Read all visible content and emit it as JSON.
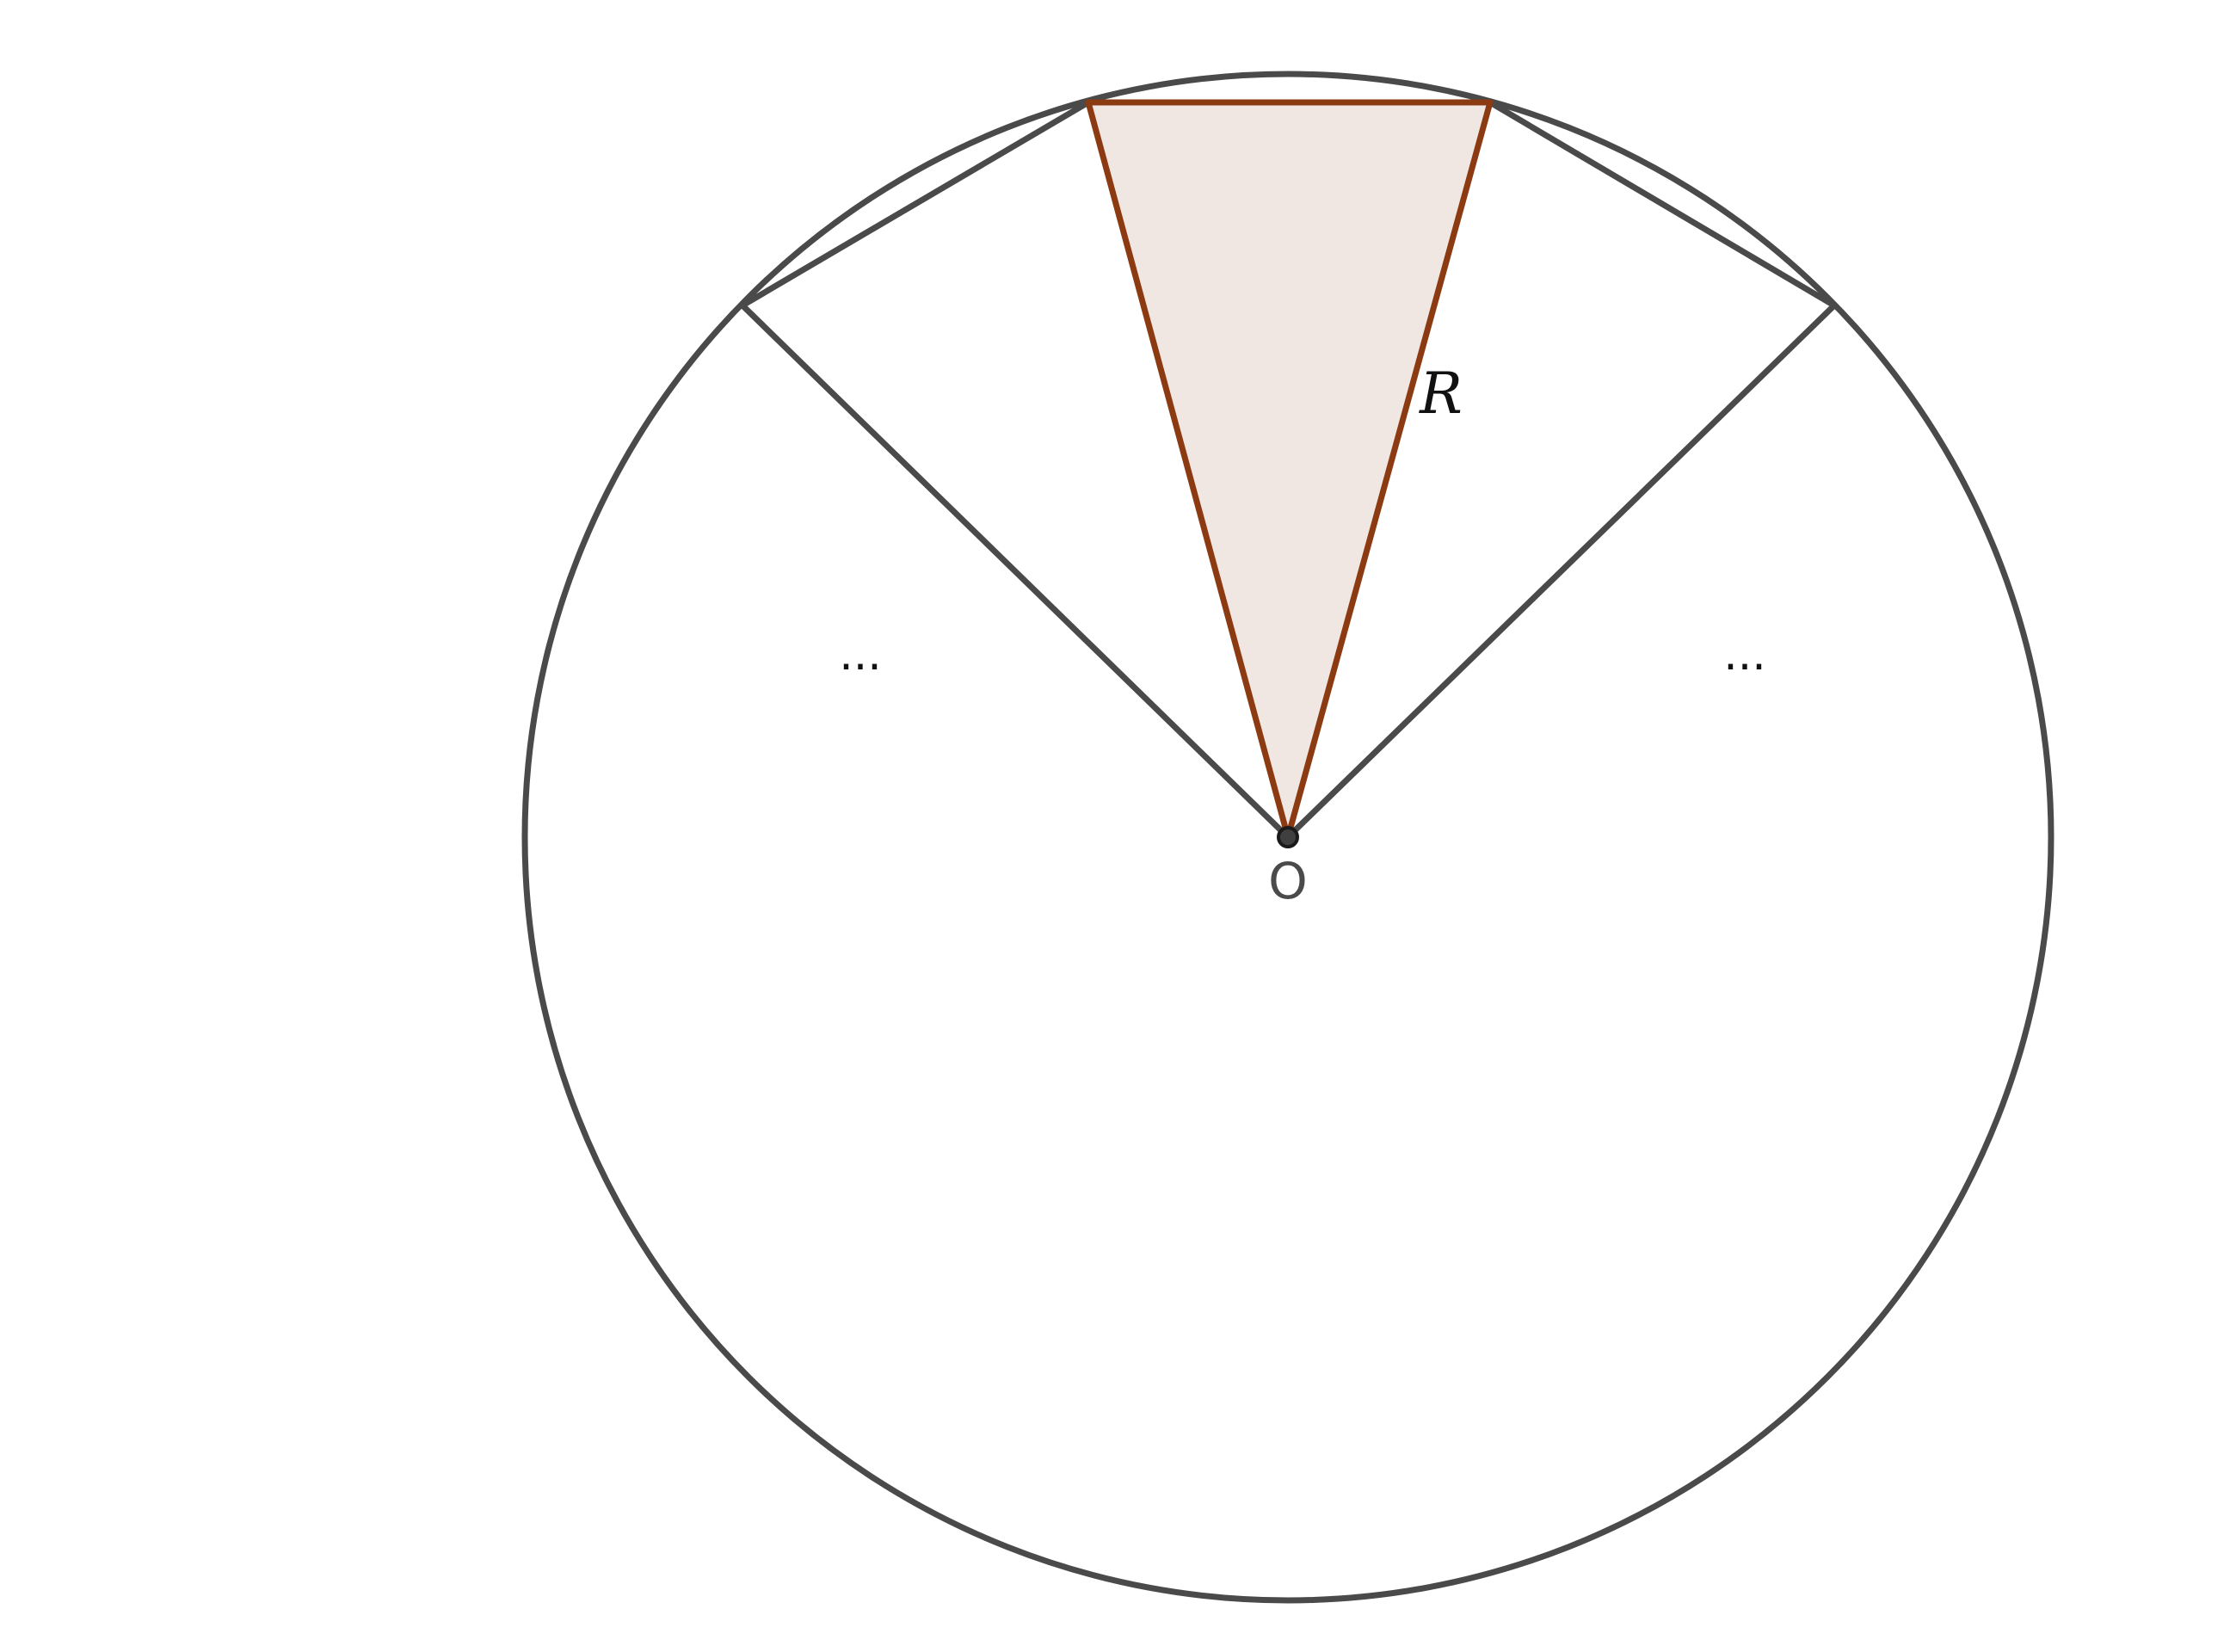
{
  "diagram": {
    "center_label": "O",
    "side_label": "R",
    "left_ellipsis": "...",
    "right_ellipsis": "...",
    "colors": {
      "outline": "#4a4a4a",
      "triangle_edge": "#8b3a12",
      "triangle_fill": "#8b3a12",
      "center_point": "#3f3f3f"
    }
  }
}
